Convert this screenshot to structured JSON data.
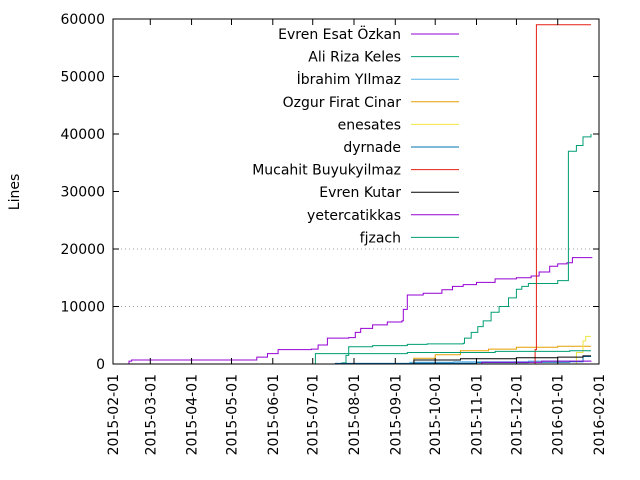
{
  "chart_data": {
    "type": "line",
    "ylabel": "Lines",
    "xlabel": "",
    "ylim": [
      0,
      60000
    ],
    "yticks": [
      0,
      10000,
      20000,
      30000,
      40000,
      50000,
      60000
    ],
    "xlim": [
      "2015-02-01",
      "2016-02-01"
    ],
    "xticks": [
      "2015-02-01",
      "2015-03-01",
      "2015-04-01",
      "2015-05-01",
      "2015-06-01",
      "2015-07-01",
      "2015-08-01",
      "2015-09-01",
      "2015-10-01",
      "2015-11-01",
      "2015-12-01",
      "2016-01-01",
      "2016-02-01"
    ],
    "grid": "horizontal dotted lines at 20000 and 10000",
    "legend_position": "top-center",
    "series": [
      {
        "name": "Evren Esat Özkan",
        "color": "#9400d3",
        "points": [
          [
            "2015-02-12",
            0
          ],
          [
            "2015-02-13",
            500
          ],
          [
            "2015-02-15",
            700
          ],
          [
            "2015-05-15",
            700
          ],
          [
            "2015-05-20",
            1200
          ],
          [
            "2015-05-28",
            1800
          ],
          [
            "2015-06-05",
            2500
          ],
          [
            "2015-06-30",
            2600
          ],
          [
            "2015-07-05",
            3300
          ],
          [
            "2015-07-12",
            4500
          ],
          [
            "2015-07-28",
            4600
          ],
          [
            "2015-08-02",
            5500
          ],
          [
            "2015-08-06",
            6200
          ],
          [
            "2015-08-15",
            6800
          ],
          [
            "2015-08-26",
            7300
          ],
          [
            "2015-09-06",
            7500
          ],
          [
            "2015-09-07",
            9500
          ],
          [
            "2015-09-10",
            12000
          ],
          [
            "2015-09-22",
            12300
          ],
          [
            "2015-10-06",
            12900
          ],
          [
            "2015-10-14",
            13500
          ],
          [
            "2015-10-22",
            13800
          ],
          [
            "2015-11-01",
            14200
          ],
          [
            "2015-11-15",
            14800
          ],
          [
            "2015-12-01",
            15000
          ],
          [
            "2015-12-12",
            15300
          ],
          [
            "2015-12-18",
            16000
          ],
          [
            "2015-12-26",
            17000
          ],
          [
            "2016-01-01",
            17400
          ],
          [
            "2016-01-08",
            17600
          ],
          [
            "2016-01-12",
            18500
          ],
          [
            "2016-01-27",
            18500
          ]
        ]
      },
      {
        "name": "Ali Riza Keles",
        "color": "#009e73",
        "points": [
          [
            "2015-07-20",
            0
          ],
          [
            "2015-07-23",
            200
          ],
          [
            "2015-07-26",
            1500
          ],
          [
            "2015-07-28",
            3000
          ],
          [
            "2015-08-15",
            3200
          ],
          [
            "2015-09-10",
            3400
          ],
          [
            "2015-09-25",
            3500
          ],
          [
            "2015-10-22",
            3600
          ],
          [
            "2015-10-23",
            4500
          ],
          [
            "2015-10-28",
            5500
          ],
          [
            "2015-11-02",
            6500
          ],
          [
            "2015-11-06",
            7500
          ],
          [
            "2015-11-12",
            9000
          ],
          [
            "2015-11-18",
            10000
          ],
          [
            "2015-11-25",
            11500
          ],
          [
            "2015-12-01",
            13000
          ],
          [
            "2015-12-05",
            13500
          ],
          [
            "2015-12-10",
            14000
          ],
          [
            "2016-01-01",
            14500
          ],
          [
            "2016-01-08",
            14500
          ],
          [
            "2016-01-09",
            37000
          ],
          [
            "2016-01-15",
            38000
          ],
          [
            "2016-01-20",
            39500
          ],
          [
            "2016-01-26",
            40000
          ]
        ]
      },
      {
        "name": "İbrahim YIlmaz",
        "color": "#56b4e9",
        "points": [
          [
            "2015-09-10",
            0
          ],
          [
            "2015-09-12",
            300
          ],
          [
            "2015-10-15",
            400
          ],
          [
            "2015-12-10",
            500
          ],
          [
            "2016-01-26",
            500
          ]
        ]
      },
      {
        "name": "Ozgur Firat Cinar",
        "color": "#e69f00",
        "points": [
          [
            "2015-09-10",
            0
          ],
          [
            "2015-09-15",
            1000
          ],
          [
            "2015-10-01",
            1600
          ],
          [
            "2015-10-20",
            2300
          ],
          [
            "2015-11-10",
            2600
          ],
          [
            "2015-12-01",
            2900
          ],
          [
            "2016-01-01",
            3100
          ],
          [
            "2016-01-26",
            3100
          ]
        ]
      },
      {
        "name": "enesates",
        "color": "#f0e442",
        "points": [
          [
            "2016-01-10",
            0
          ],
          [
            "2016-01-15",
            2000
          ],
          [
            "2016-01-20",
            4000
          ],
          [
            "2016-01-22",
            4800
          ],
          [
            "2016-01-26",
            4800
          ]
        ]
      },
      {
        "name": "dyrnade",
        "color": "#0072b2",
        "points": [
          [
            "2015-07-15",
            0
          ],
          [
            "2015-07-18",
            100
          ],
          [
            "2015-09-15",
            150
          ],
          [
            "2015-11-01",
            250
          ],
          [
            "2015-12-10",
            300
          ],
          [
            "2016-01-10",
            400
          ],
          [
            "2016-01-20",
            1300
          ],
          [
            "2016-01-26",
            1300
          ]
        ]
      },
      {
        "name": "Mucahit Buyukyilmaz",
        "color": "#e51e10",
        "points": [
          [
            "2015-12-14",
            0
          ],
          [
            "2015-12-15",
            2500
          ],
          [
            "2015-12-16",
            59000
          ],
          [
            "2016-01-26",
            59000
          ]
        ]
      },
      {
        "name": "Evren Kutar",
        "color": "#000000",
        "points": [
          [
            "2015-09-10",
            0
          ],
          [
            "2015-09-15",
            700
          ],
          [
            "2015-10-20",
            900
          ],
          [
            "2015-12-01",
            1100
          ],
          [
            "2016-01-01",
            1200
          ],
          [
            "2016-01-20",
            1400
          ],
          [
            "2016-01-26",
            1400
          ]
        ]
      },
      {
        "name": "yetercatikkas",
        "color": "#9400d3",
        "points": [
          [
            "2015-11-01",
            0
          ],
          [
            "2015-11-05",
            300
          ],
          [
            "2015-12-20",
            500
          ],
          [
            "2016-01-26",
            600
          ]
        ]
      },
      {
        "name": "fjzach",
        "color": "#009e73",
        "points": [
          [
            "2015-07-02",
            0
          ],
          [
            "2015-07-03",
            1800
          ],
          [
            "2015-09-10",
            2000
          ],
          [
            "2015-11-15",
            2200
          ],
          [
            "2016-01-10",
            2300
          ],
          [
            "2016-01-26",
            2300
          ]
        ]
      }
    ]
  }
}
